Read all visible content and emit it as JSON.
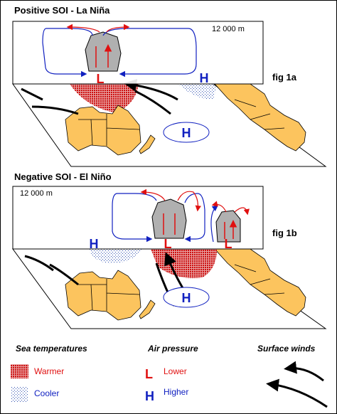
{
  "panels": [
    {
      "title": "Positive SOI  -  La Niña",
      "altitude": "12 000 m",
      "figure": "fig 1a",
      "pressure_labels": [
        "L",
        "H",
        "H"
      ]
    },
    {
      "title": "Negative SOI  -  El Niño",
      "altitude": "12 000 m",
      "figure": "fig 1b",
      "pressure_labels": [
        "H",
        "L",
        "L",
        "H"
      ]
    }
  ],
  "legend": {
    "sea_temperatures": {
      "title": "Sea temperatures",
      "warmer": "Warmer",
      "cooler": "Cooler"
    },
    "air_pressure": {
      "title": "Air pressure",
      "lower_symbol": "L",
      "lower": "Lower",
      "higher_symbol": "H",
      "higher": "Higher"
    },
    "surface_winds": {
      "title": "Surface winds"
    }
  }
}
